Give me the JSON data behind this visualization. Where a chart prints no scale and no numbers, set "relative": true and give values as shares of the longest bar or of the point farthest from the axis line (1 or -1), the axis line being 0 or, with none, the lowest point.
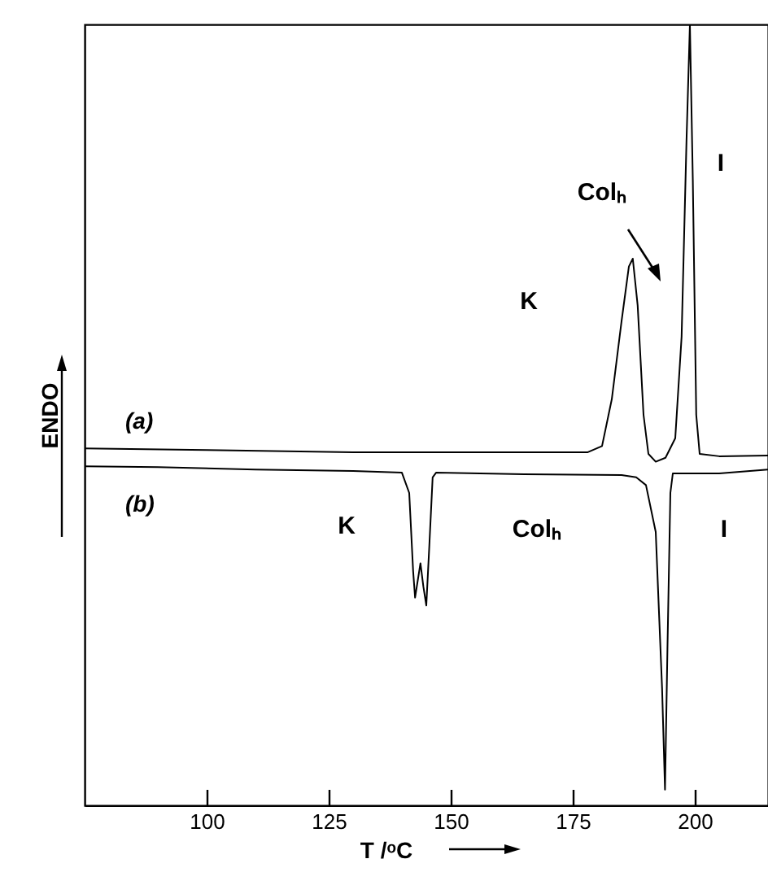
{
  "chart_data": {
    "type": "line",
    "relative": true,
    "xlabel": "T /ᵒC",
    "ylabel": "ENDO",
    "xlim": [
      75,
      215
    ],
    "xticks": [
      100,
      125,
      150,
      175,
      200
    ],
    "grid": false,
    "marker": "none",
    "line_style": "solid",
    "x": [
      75,
      100,
      130,
      160,
      178,
      181,
      183,
      185,
      186.5,
      187.3,
      188.3,
      189.5,
      190.5,
      192,
      194,
      196,
      197.3,
      198.3,
      199,
      199.6,
      200.3,
      201,
      205,
      215
    ],
    "series": [
      {
        "name": "(a)",
        "color": "#000000",
        "values": [
          0.457,
          0.455,
          0.452,
          0.452,
          0.452,
          0.46,
          0.52,
          0.62,
          0.69,
          0.7,
          0.64,
          0.5,
          0.45,
          0.44,
          0.445,
          0.47,
          0.6,
          0.85,
          1.0,
          0.8,
          0.5,
          0.45,
          0.447,
          0.448
        ]
      },
      {
        "name": "(b)",
        "color": "#000000",
        "x": [
          75,
          90,
          110,
          130,
          140,
          141.5,
          142.3,
          142.7,
          143.3,
          143.8,
          144.4,
          145,
          145.6,
          146.3,
          147,
          165,
          185,
          188,
          190,
          192,
          193.3,
          193.9,
          194.4,
          195,
          195.5,
          205,
          215
        ],
        "values": [
          0.434,
          0.433,
          0.43,
          0.428,
          0.426,
          0.4,
          0.3,
          0.266,
          0.29,
          0.31,
          0.28,
          0.256,
          0.33,
          0.42,
          0.426,
          0.424,
          0.423,
          0.42,
          0.41,
          0.35,
          0.15,
          0.02,
          0.2,
          0.4,
          0.425,
          0.425,
          0.43
        ]
      }
    ],
    "annotations": [
      "K",
      "Colₕ",
      "I",
      "K",
      "Colₕ",
      "I"
    ]
  }
}
